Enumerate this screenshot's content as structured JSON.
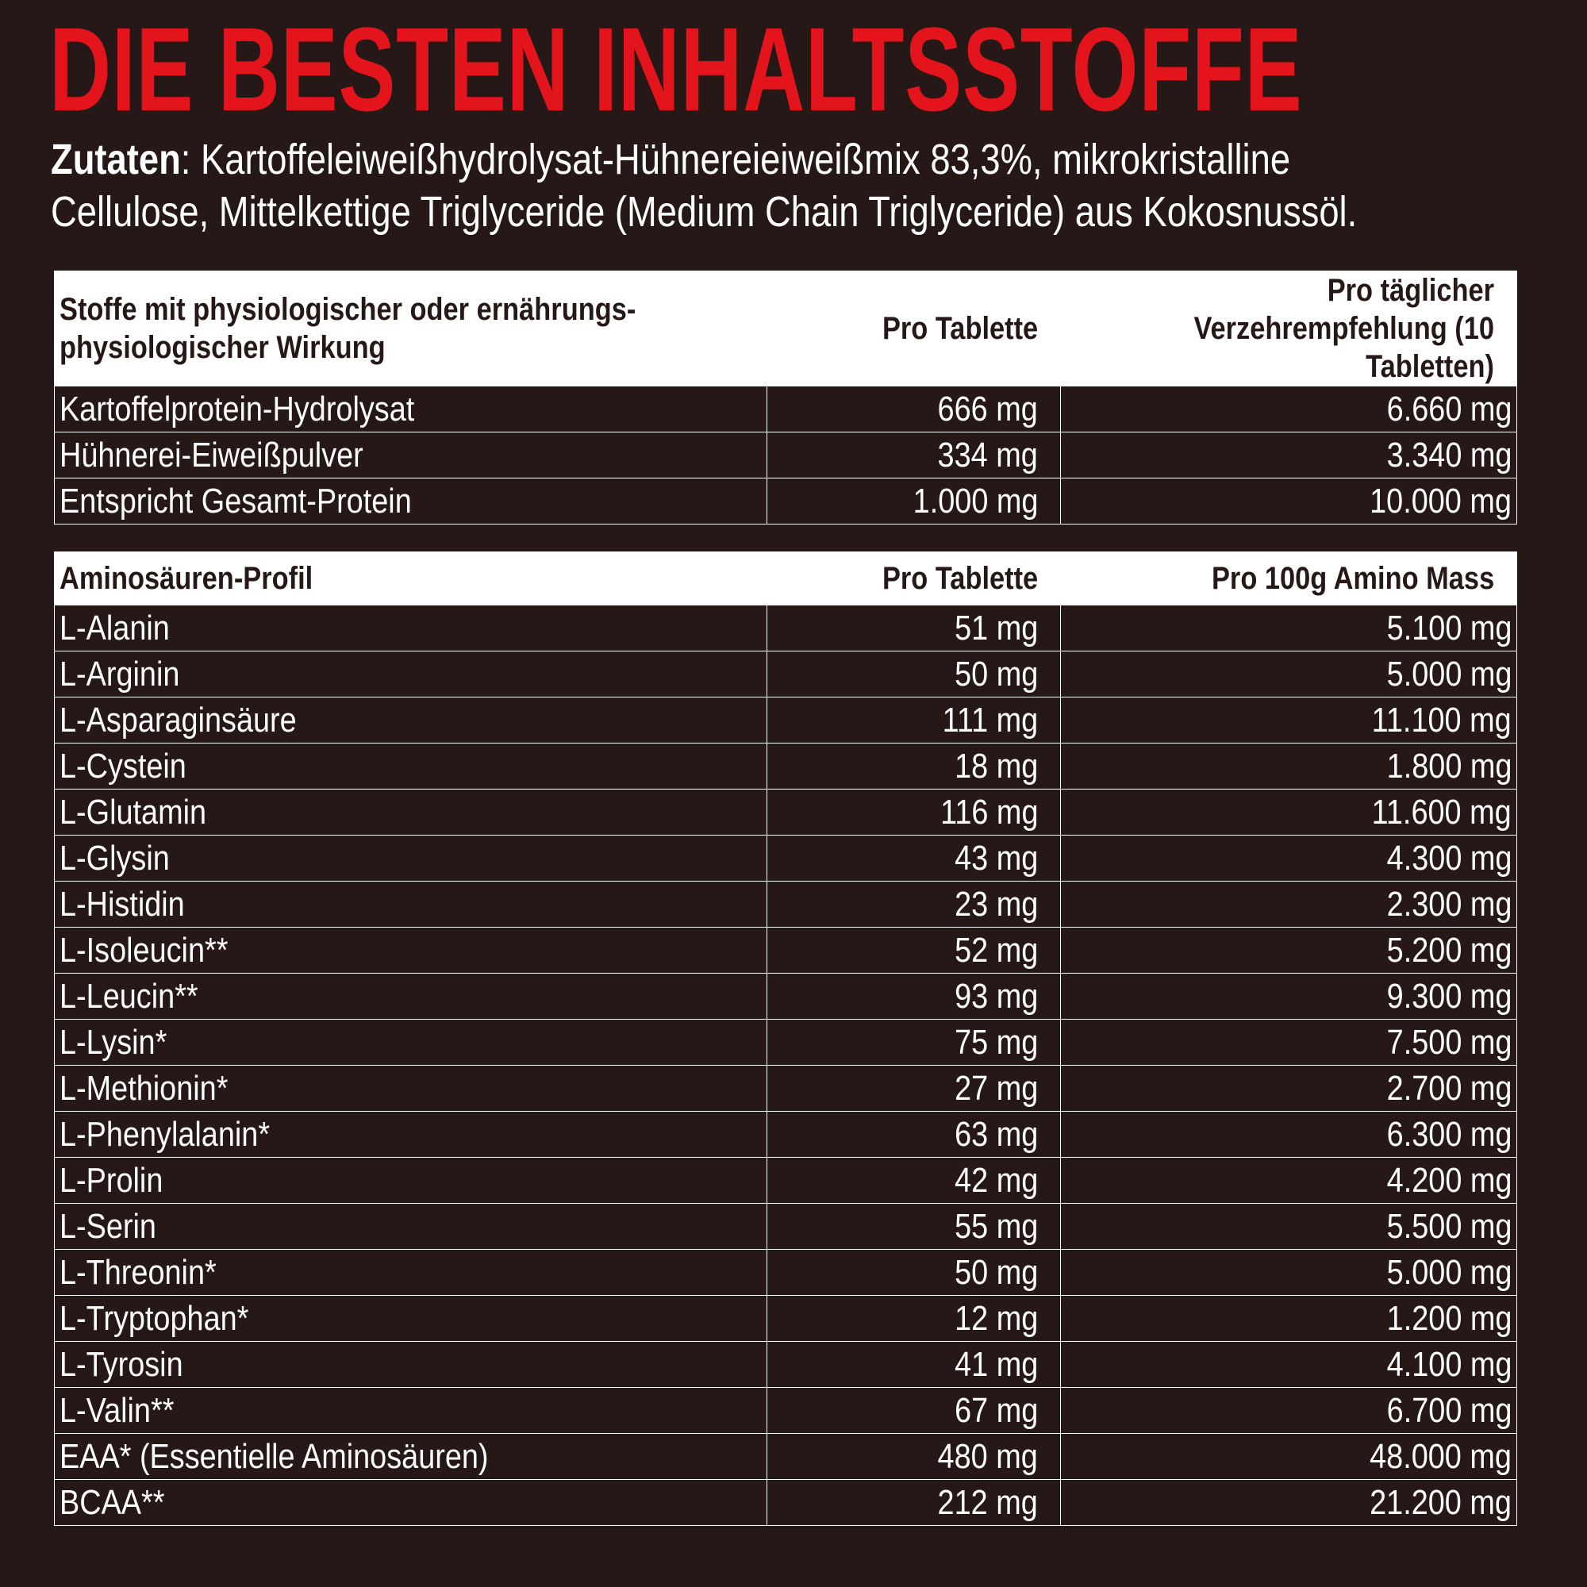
{
  "title": "DIE BESTEN INHALTSSTOFFE",
  "ingredients": {
    "label": "Zutaten",
    "line1": ": Kartoffeleiweißhydrolysat-Hühnereieiweißmix 83,3%, mikrokristalline",
    "line2": "Cellulose,  Mittelkettige Triglyceride (Medium Chain Triglyceride) aus Kokosnussöl."
  },
  "table1": {
    "headers": [
      "Stoffe mit physiologischer oder ernährungs-physiologischer Wirkung",
      "Pro Tablette",
      "Pro täglicher Verzehrempfehlung (10 Tabletten)"
    ],
    "rows": [
      [
        "Kartoffelprotein-Hydrolysat",
        "666 mg",
        "6.660 mg"
      ],
      [
        "Hühnerei-Eiweißpulver",
        "334 mg",
        "3.340 mg"
      ],
      [
        "Entspricht Gesamt-Protein",
        "1.000 mg",
        "10.000 mg"
      ]
    ]
  },
  "table2": {
    "headers": [
      "Aminosäuren-Profil",
      "Pro Tablette",
      "Pro 100g Amino Mass"
    ],
    "rows": [
      [
        "L-Alanin",
        "51 mg",
        "5.100 mg"
      ],
      [
        "L-Arginin",
        "50 mg",
        "5.000 mg"
      ],
      [
        "L-Asparaginsäure",
        "111 mg",
        "11.100 mg"
      ],
      [
        "L-Cystein",
        "18 mg",
        "1.800 mg"
      ],
      [
        "L-Glutamin",
        "116 mg",
        "11.600 mg"
      ],
      [
        "L-Glysin",
        "43 mg",
        "4.300 mg"
      ],
      [
        "L-Histidin",
        "23 mg",
        "2.300 mg"
      ],
      [
        "L-Isoleucin**",
        "52 mg",
        "5.200 mg"
      ],
      [
        "L-Leucin**",
        "93 mg",
        "9.300 mg"
      ],
      [
        "L-Lysin*",
        "75 mg",
        "7.500 mg"
      ],
      [
        "L-Methionin*",
        "27 mg",
        "2.700 mg"
      ],
      [
        "L-Phenylalanin*",
        "63 mg",
        "6.300 mg"
      ],
      [
        "L-Prolin",
        "42 mg",
        "4.200 mg"
      ],
      [
        "L-Serin",
        "55 mg",
        "5.500 mg"
      ],
      [
        "L-Threonin*",
        "50 mg",
        "5.000 mg"
      ],
      [
        "L-Tryptophan*",
        "12 mg",
        "1.200 mg"
      ],
      [
        "L-Tyrosin",
        "41 mg",
        "4.100 mg"
      ],
      [
        "L-Valin**",
        "67 mg",
        "6.700 mg"
      ],
      [
        "EAA* (Essentielle Aminosäuren)",
        "480 mg",
        "48.000 mg"
      ],
      [
        "BCAA**",
        "212 mg",
        "21.200 mg"
      ]
    ]
  }
}
